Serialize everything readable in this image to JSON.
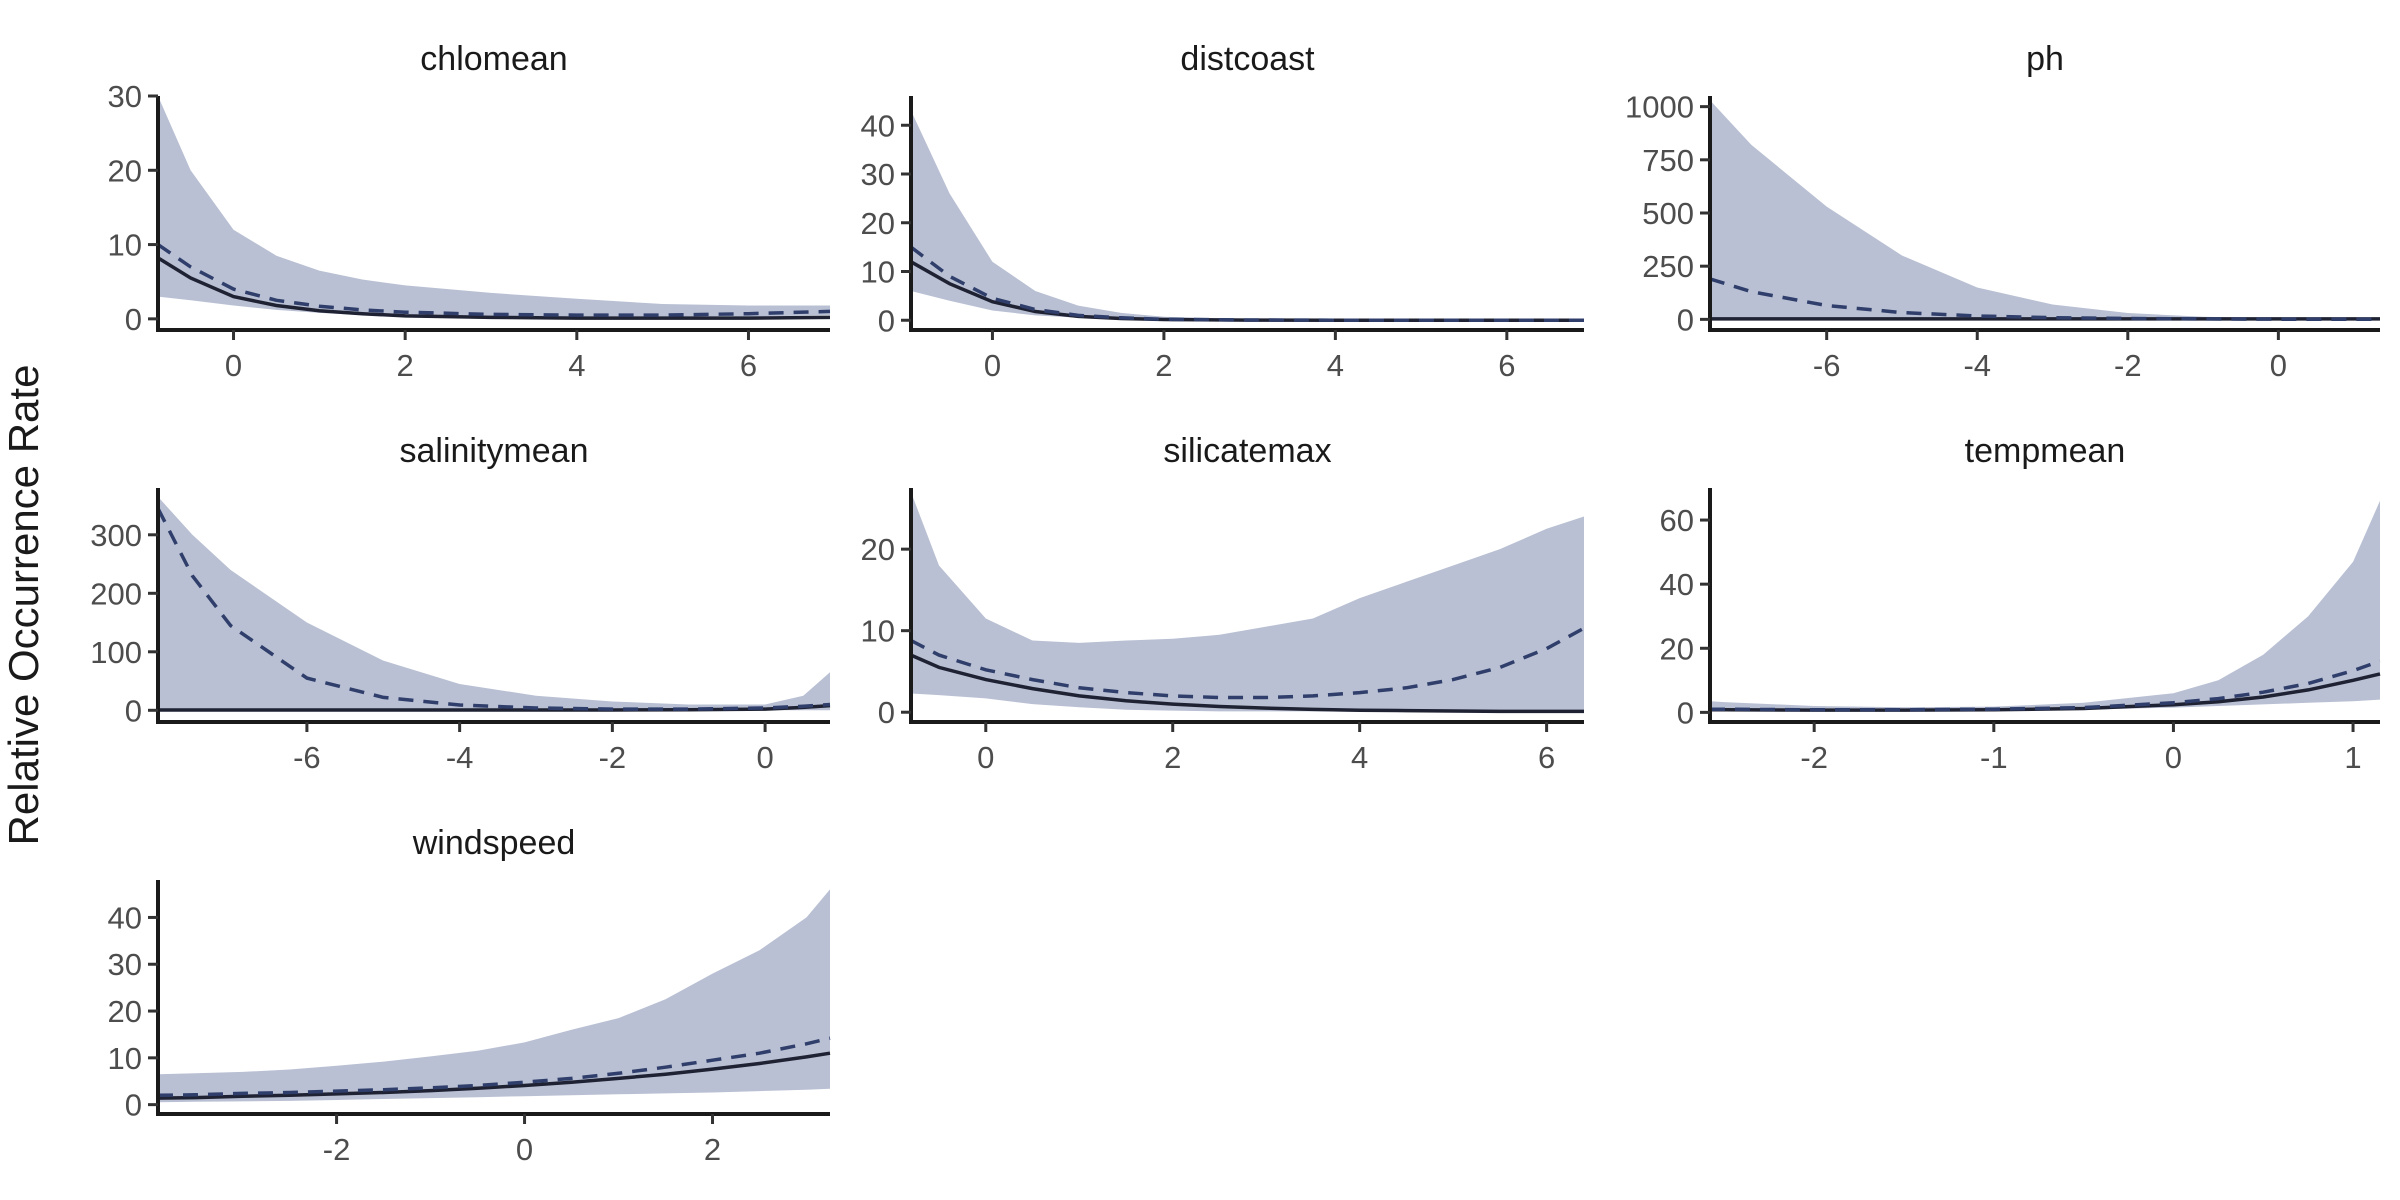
{
  "figure": {
    "ylabel": "Relative Occurrence Rate",
    "colors": {
      "ribbon": "#b9c0d3",
      "solid_line": "#1f2233",
      "dashed_line": "#2f3e6b",
      "axis": "#1a1a1a",
      "text": "#4d4d4d"
    }
  },
  "chart_data": [
    {
      "type": "area",
      "title": "chlomean",
      "xlim": [
        -0.88,
        6.95
      ],
      "ylim": [
        -1.5,
        30
      ],
      "xticks": [
        0,
        2,
        4,
        6
      ],
      "yticks": [
        0,
        10,
        20,
        30
      ],
      "x": [
        -0.88,
        -0.5,
        0,
        0.5,
        1,
        1.5,
        2,
        3,
        4,
        5,
        6,
        6.95
      ],
      "ribbon_lower": [
        3,
        2.5,
        1.8,
        1.2,
        0.8,
        0.5,
        0.3,
        0.2,
        0.2,
        0.2,
        0.3,
        0.5
      ],
      "ribbon_upper": [
        30,
        20,
        12,
        8.5,
        6.5,
        5.3,
        4.5,
        3.5,
        2.7,
        2.0,
        1.8,
        1.8
      ],
      "series": [
        {
          "style": "solid",
          "values": [
            8.2,
            5.5,
            3.0,
            1.8,
            1.1,
            0.7,
            0.4,
            0.2,
            0.1,
            0.1,
            0.1,
            0.2
          ]
        },
        {
          "style": "dashed",
          "values": [
            10,
            7,
            4,
            2.5,
            1.7,
            1.2,
            0.9,
            0.6,
            0.5,
            0.5,
            0.7,
            1.0
          ]
        }
      ]
    },
    {
      "type": "area",
      "title": "distcoast",
      "xlim": [
        -0.95,
        6.9
      ],
      "ylim": [
        -2,
        46
      ],
      "xticks": [
        0,
        2,
        4,
        6
      ],
      "yticks": [
        0,
        10,
        20,
        30,
        40
      ],
      "x": [
        -0.95,
        -0.5,
        0,
        0.5,
        1,
        1.5,
        2,
        3,
        4,
        5,
        6,
        6.9
      ],
      "ribbon_lower": [
        6,
        4,
        2,
        1,
        0.5,
        0.3,
        0.1,
        0,
        0,
        0,
        0,
        0
      ],
      "ribbon_upper": [
        43,
        26,
        12,
        6,
        3,
        1.5,
        0.7,
        0.2,
        0.1,
        0.1,
        0.1,
        0.1
      ],
      "series": [
        {
          "style": "solid",
          "values": [
            12,
            7.5,
            3.8,
            1.8,
            0.8,
            0.35,
            0.15,
            0.03,
            0.01,
            0,
            0,
            0
          ]
        },
        {
          "style": "dashed",
          "values": [
            15,
            9,
            4.5,
            2.2,
            1,
            0.5,
            0.2,
            0.05,
            0.02,
            0.01,
            0,
            0
          ]
        }
      ]
    },
    {
      "type": "area",
      "title": "ph",
      "xlim": [
        -7.55,
        1.35
      ],
      "ylim": [
        -50,
        1050
      ],
      "xticks": [
        -6,
        -4,
        -2,
        0
      ],
      "yticks": [
        0,
        250,
        500,
        750,
        1000
      ],
      "x": [
        -7.55,
        -7,
        -6,
        -5,
        -4,
        -3,
        -2,
        -1,
        0,
        1,
        1.35
      ],
      "ribbon_lower": [
        0,
        0,
        0,
        0,
        0,
        0,
        0,
        0,
        0,
        0,
        0
      ],
      "ribbon_upper": [
        1030,
        820,
        530,
        300,
        150,
        70,
        30,
        12,
        5,
        3,
        3
      ],
      "series": [
        {
          "style": "solid",
          "values": [
            2,
            2,
            2,
            2,
            2,
            2,
            2,
            2,
            2,
            2,
            2
          ]
        },
        {
          "style": "dashed",
          "values": [
            190,
            130,
            65,
            32,
            16,
            8,
            4,
            2,
            1,
            1,
            1
          ]
        }
      ]
    },
    {
      "type": "area",
      "title": "salinitymean",
      "xlim": [
        -7.95,
        0.85
      ],
      "ylim": [
        -20,
        380
      ],
      "xticks": [
        -6,
        -4,
        -2,
        0
      ],
      "yticks": [
        0,
        100,
        200,
        300
      ],
      "x": [
        -7.95,
        -7.5,
        -7,
        -6,
        -5,
        -4,
        -3,
        -2,
        -1,
        0,
        0.5,
        0.85
      ],
      "ribbon_lower": [
        0,
        0,
        0,
        0,
        0,
        0,
        0,
        0,
        0,
        0,
        0,
        0
      ],
      "ribbon_upper": [
        365,
        300,
        240,
        150,
        85,
        45,
        25,
        15,
        10,
        10,
        25,
        65
      ],
      "series": [
        {
          "style": "solid",
          "values": [
            0.5,
            0.5,
            0.5,
            0.5,
            0.5,
            0.5,
            0.5,
            0.5,
            1,
            2,
            5,
            8
          ]
        },
        {
          "style": "dashed",
          "values": [
            345,
            230,
            145,
            55,
            22,
            9,
            4,
            2,
            2,
            4,
            7,
            10
          ]
        }
      ]
    },
    {
      "type": "area",
      "title": "silicatemax",
      "xlim": [
        -0.8,
        6.4
      ],
      "ylim": [
        -1.2,
        27.5
      ],
      "xticks": [
        0,
        2,
        4,
        6
      ],
      "yticks": [
        0,
        10,
        20
      ],
      "x": [
        -0.8,
        -0.5,
        0,
        0.5,
        1,
        1.5,
        2,
        2.5,
        3,
        3.5,
        4,
        4.5,
        5,
        5.5,
        6,
        6.4
      ],
      "ribbon_lower": [
        2.3,
        2.1,
        1.7,
        1.0,
        0.6,
        0.3,
        0.2,
        0.1,
        0.1,
        0.1,
        0.05,
        0.05,
        0.05,
        0.05,
        0.05,
        0.05
      ],
      "ribbon_upper": [
        27,
        18,
        11.5,
        8.8,
        8.5,
        8.8,
        9.0,
        9.5,
        10.5,
        11.5,
        14.0,
        16.0,
        18.0,
        20.0,
        22.5,
        24.0
      ],
      "series": [
        {
          "style": "solid",
          "values": [
            7,
            5.5,
            4.0,
            2.9,
            2.0,
            1.4,
            1.0,
            0.7,
            0.5,
            0.35,
            0.25,
            0.2,
            0.15,
            0.1,
            0.1,
            0.1
          ]
        },
        {
          "style": "dashed",
          "values": [
            8.8,
            7,
            5.2,
            4.0,
            3.0,
            2.4,
            2.0,
            1.8,
            1.8,
            2.0,
            2.4,
            3.0,
            4.0,
            5.5,
            7.8,
            10.3
          ]
        }
      ]
    },
    {
      "type": "area",
      "title": "tempmean",
      "xlim": [
        -2.58,
        1.15
      ],
      "ylim": [
        -3,
        70
      ],
      "xticks": [
        -2,
        -1,
        0,
        1
      ],
      "yticks": [
        0,
        20,
        40,
        60
      ],
      "x": [
        -2.58,
        -2.5,
        -2,
        -1.5,
        -1,
        -0.5,
        0,
        0.25,
        0.5,
        0.75,
        1,
        1.15
      ],
      "ribbon_lower": [
        0.5,
        0.5,
        0.3,
        0.3,
        0.4,
        0.8,
        1.5,
        2.0,
        2.5,
        3.0,
        3.5,
        4.0
      ],
      "ribbon_upper": [
        3.5,
        3.2,
        2.0,
        1.6,
        1.8,
        3.0,
        6.0,
        10,
        18,
        30,
        47,
        66
      ],
      "series": [
        {
          "style": "solid",
          "values": [
            0.8,
            0.8,
            0.7,
            0.7,
            0.8,
            1.2,
            2.4,
            3.3,
            4.8,
            7,
            10,
            12
          ]
        },
        {
          "style": "dashed",
          "values": [
            1,
            1,
            0.8,
            0.8,
            1,
            1.5,
            3,
            4.3,
            6.3,
            9,
            13,
            16
          ]
        }
      ]
    },
    {
      "type": "area",
      "title": "windspeed",
      "xlim": [
        -3.9,
        3.25
      ],
      "ylim": [
        -2,
        48
      ],
      "xticks": [
        -2,
        0,
        2
      ],
      "yticks": [
        0,
        10,
        20,
        30,
        40
      ],
      "x": [
        -3.9,
        -3.5,
        -3,
        -2.5,
        -2,
        -1.5,
        -1,
        -0.5,
        0,
        0.5,
        1,
        1.5,
        2,
        2.5,
        3,
        3.25
      ],
      "ribbon_lower": [
        0.5,
        0.6,
        0.7,
        0.8,
        1.0,
        1.2,
        1.4,
        1.6,
        1.8,
        2.0,
        2.2,
        2.4,
        2.6,
        2.9,
        3.2,
        3.4
      ],
      "ribbon_upper": [
        6.5,
        6.7,
        7.0,
        7.5,
        8.3,
        9.2,
        10.3,
        11.5,
        13.3,
        16.0,
        18.5,
        22.5,
        28.0,
        33.0,
        40.0,
        46.0
      ],
      "series": [
        {
          "style": "solid",
          "values": [
            1.4,
            1.5,
            1.8,
            2.0,
            2.3,
            2.6,
            3.0,
            3.5,
            4.1,
            4.8,
            5.6,
            6.5,
            7.6,
            8.8,
            10.2,
            11.0
          ]
        },
        {
          "style": "dashed",
          "values": [
            2.0,
            2.1,
            2.4,
            2.6,
            2.9,
            3.2,
            3.6,
            4.1,
            4.8,
            5.6,
            6.7,
            8.0,
            9.5,
            11.0,
            13.0,
            14.2
          ]
        }
      ]
    }
  ]
}
